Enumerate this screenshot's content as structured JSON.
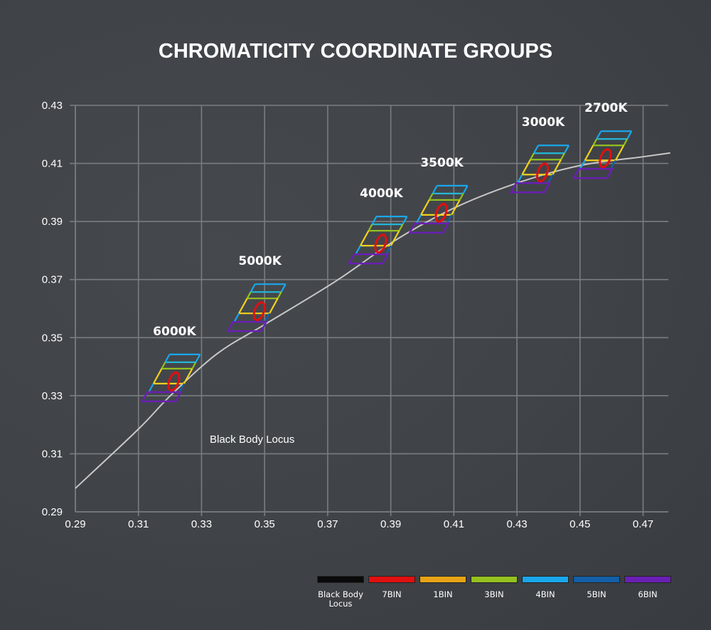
{
  "chart_data": {
    "type": "scatter",
    "title": "CHROMATICITY COORDINATE GROUPS",
    "xlabel": "",
    "ylabel": "",
    "xlim": [
      0.29,
      0.478
    ],
    "ylim": [
      0.29,
      0.43
    ],
    "grid": true,
    "x_ticks": [
      "0.29",
      "0.31",
      "0.33",
      "0.35",
      "0.37",
      "0.39",
      "0.41",
      "0.43",
      "0.45",
      "0.47"
    ],
    "y_ticks": [
      "0.43",
      "0.41",
      "0.39",
      "0.37",
      "0.35",
      "0.33",
      "0.31",
      "0.29"
    ],
    "black_body_locus": {
      "label": "Black Body Locus",
      "color": "#c8c8c8",
      "points": [
        [
          0.29,
          0.2981
        ],
        [
          0.31,
          0.3185
        ],
        [
          0.3203,
          0.3302
        ],
        [
          0.335,
          0.3445
        ],
        [
          0.35,
          0.3545
        ],
        [
          0.3725,
          0.3694
        ],
        [
          0.392,
          0.3839
        ],
        [
          0.4112,
          0.3952
        ],
        [
          0.4316,
          0.4038
        ],
        [
          0.4506,
          0.4094
        ],
        [
          0.47,
          0.4123
        ],
        [
          0.4786,
          0.4136
        ]
      ]
    },
    "groups": [
      {
        "label": "6000K",
        "x": 0.3212,
        "y": 0.3349
      },
      {
        "label": "5000K",
        "x": 0.3483,
        "y": 0.3591
      },
      {
        "label": "4000K",
        "x": 0.3868,
        "y": 0.3824
      },
      {
        "label": "3500K",
        "x": 0.406,
        "y": 0.393
      },
      {
        "label": "3000K",
        "x": 0.4381,
        "y": 0.4069
      },
      {
        "label": "2700K",
        "x": 0.458,
        "y": 0.4118
      }
    ],
    "legend": [
      {
        "name": "Black Body Locus",
        "color": "#0a0a0a"
      },
      {
        "name": "7BIN",
        "color": "#e01010"
      },
      {
        "name": "1BIN",
        "color": "#e8a317"
      },
      {
        "name": "3BIN",
        "color": "#94c11f"
      },
      {
        "name": "4BIN",
        "color": "#1aa7ec"
      },
      {
        "name": "5BIN",
        "color": "#135fa8"
      },
      {
        "name": "6BIN",
        "color": "#6a1fb5"
      }
    ],
    "legend_position": "bottom-right",
    "annotation": "Black Body Locus"
  }
}
